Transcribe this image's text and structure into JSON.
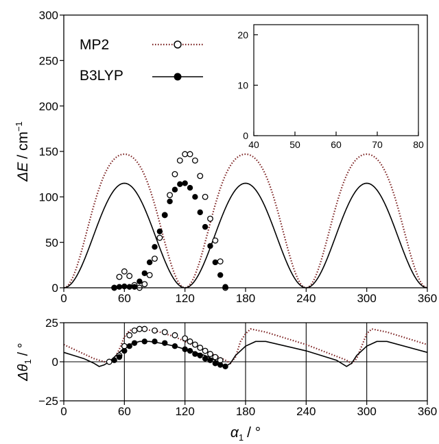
{
  "chart_data": [
    {
      "type": "line",
      "panel": "top",
      "ylabel_sym": "ΔE",
      "ylabel_unit": "/ cm",
      "ylabel_exp": "−1",
      "xlim": [
        0,
        360
      ],
      "ylim": [
        0,
        300
      ],
      "xticks": [
        0,
        60,
        120,
        180,
        240,
        300,
        360
      ],
      "yticks": [
        0,
        50,
        100,
        150,
        200,
        250,
        300
      ],
      "legend_position": "top-left",
      "series": [
        {
          "name": "MP2",
          "style": "dotted",
          "color": "#7a1f1f",
          "marker": "open-circle",
          "curve_amplitude": 147,
          "curve_inner_amplitude": 18,
          "curve_inner_phase": 90,
          "points": [
            [
              50,
              0
            ],
            [
              55,
              12
            ],
            [
              60,
              18
            ],
            [
              65,
              13
            ],
            [
              70,
              3
            ],
            [
              75,
              0
            ],
            [
              80,
              4
            ],
            [
              85,
              14
            ],
            [
              90,
              32
            ],
            [
              95,
              55
            ],
            [
              100,
              80
            ],
            [
              105,
              102
            ],
            [
              110,
              125
            ],
            [
              115,
              140
            ],
            [
              120,
              147
            ],
            [
              125,
              147
            ],
            [
              130,
              140
            ],
            [
              135,
              123
            ],
            [
              140,
              100
            ],
            [
              145,
              76
            ],
            [
              150,
              52
            ],
            [
              155,
              29
            ],
            [
              160,
              0
            ]
          ]
        },
        {
          "name": "B3LYP",
          "style": "solid",
          "color": "#000000",
          "marker": "filled-circle",
          "curve_amplitude": 115,
          "curve_inner_amplitude": 1.5,
          "curve_inner_phase": 90,
          "points": [
            [
              50,
              0
            ],
            [
              55,
              1
            ],
            [
              60,
              1.5
            ],
            [
              65,
              1
            ],
            [
              70,
              1
            ],
            [
              75,
              7
            ],
            [
              80,
              16
            ],
            [
              85,
              28
            ],
            [
              90,
              45
            ],
            [
              95,
              62
            ],
            [
              100,
              80
            ],
            [
              105,
              95
            ],
            [
              110,
              108
            ],
            [
              115,
              114
            ],
            [
              120,
              115
            ],
            [
              125,
              110
            ],
            [
              130,
              100
            ],
            [
              135,
              83
            ],
            [
              140,
              67
            ],
            [
              145,
              46
            ],
            [
              150,
              28
            ],
            [
              155,
              14
            ],
            [
              160,
              1
            ]
          ]
        }
      ]
    },
    {
      "type": "line",
      "panel": "inset",
      "xlim": [
        40,
        80
      ],
      "ylim": [
        0,
        22
      ],
      "xticks": [
        40,
        50,
        60,
        70,
        80
      ],
      "yticks": [
        0,
        10,
        20
      ],
      "series": [
        {
          "name": "MP2",
          "style": "dotted",
          "curve_amplitude": 147,
          "curve_inner_amplitude": 18
        },
        {
          "name": "B3LYP",
          "style": "solid",
          "curve_amplitude": 115,
          "curve_inner_amplitude": 1.5
        }
      ]
    },
    {
      "type": "line",
      "panel": "bottom",
      "ylabel_sym": "Δθ",
      "ylabel_sub": "1",
      "ylabel_unit": "/ °",
      "xlabel_sym": "α",
      "xlabel_sub": "1",
      "xlabel_unit": "/ °",
      "xlim": [
        0,
        360
      ],
      "ylim": [
        -25,
        25
      ],
      "xticks": [
        0,
        60,
        120,
        180,
        240,
        300,
        360
      ],
      "yticks": [
        -25,
        0,
        25
      ],
      "yticklabels": [
        "−25",
        "0",
        "25"
      ],
      "vertical_lines": [
        60,
        120,
        180,
        240,
        300
      ],
      "series": [
        {
          "name": "MP2",
          "style": "dotted",
          "marker": "open-circle",
          "curve": [
            [
              0,
              11
            ],
            [
              10,
              8
            ],
            [
              20,
              5
            ],
            [
              30,
              2
            ],
            [
              40,
              0
            ],
            [
              45,
              0
            ],
            [
              50,
              2
            ],
            [
              55,
              8
            ],
            [
              60,
              16
            ],
            [
              65,
              20
            ],
            [
              70,
              21
            ],
            [
              75,
              21
            ],
            [
              80,
              20.5
            ],
            [
              90,
              20
            ],
            [
              100,
              18
            ],
            [
              110,
              16
            ],
            [
              120,
              13
            ],
            [
              130,
              10
            ],
            [
              140,
              7
            ],
            [
              150,
              4
            ],
            [
              160,
              1
            ],
            [
              165,
              -1
            ],
            [
              170,
              3
            ],
            [
              175,
              13
            ],
            [
              180,
              18
            ],
            [
              185,
              21
            ],
            [
              200,
              19
            ],
            [
              240,
              11
            ],
            [
              260,
              6
            ],
            [
              280,
              1
            ],
            [
              285,
              -1
            ],
            [
              290,
              2
            ],
            [
              295,
              10
            ],
            [
              300,
              18
            ],
            [
              305,
              21
            ],
            [
              320,
              19
            ],
            [
              340,
              15
            ],
            [
              360,
              11
            ]
          ],
          "points": [
            [
              45,
              0
            ],
            [
              55,
              4
            ],
            [
              60,
              10
            ],
            [
              65,
              17
            ],
            [
              70,
              20
            ],
            [
              75,
              21
            ],
            [
              80,
              21
            ],
            [
              90,
              20
            ],
            [
              100,
              19
            ],
            [
              110,
              17
            ],
            [
              120,
              15
            ],
            [
              125,
              13
            ],
            [
              130,
              11
            ],
            [
              135,
              9
            ],
            [
              140,
              7
            ],
            [
              145,
              5
            ],
            [
              150,
              3
            ],
            [
              155,
              1
            ]
          ]
        },
        {
          "name": "B3LYP",
          "style": "solid",
          "marker": "filled-circle",
          "curve": [
            [
              0,
              6
            ],
            [
              10,
              4
            ],
            [
              20,
              2
            ],
            [
              30,
              -1
            ],
            [
              35,
              -3
            ],
            [
              40,
              -2
            ],
            [
              45,
              0
            ],
            [
              50,
              3
            ],
            [
              55,
              6
            ],
            [
              60,
              9
            ],
            [
              65,
              11
            ],
            [
              75,
              13
            ],
            [
              85,
              13
            ],
            [
              95,
              12
            ],
            [
              110,
              10
            ],
            [
              120,
              8
            ],
            [
              130,
              6
            ],
            [
              140,
              4
            ],
            [
              150,
              1
            ],
            [
              160,
              -3
            ],
            [
              165,
              -1
            ],
            [
              170,
              4
            ],
            [
              180,
              10
            ],
            [
              190,
              13
            ],
            [
              200,
              13
            ],
            [
              240,
              7
            ],
            [
              270,
              1
            ],
            [
              280,
              -3
            ],
            [
              285,
              -1
            ],
            [
              290,
              4
            ],
            [
              300,
              10
            ],
            [
              310,
              13
            ],
            [
              320,
              13
            ],
            [
              360,
              6
            ]
          ],
          "points": [
            [
              50,
              1
            ],
            [
              55,
              3
            ],
            [
              60,
              7
            ],
            [
              65,
              10
            ],
            [
              70,
              12
            ],
            [
              80,
              13
            ],
            [
              90,
              13
            ],
            [
              100,
              12
            ],
            [
              110,
              10
            ],
            [
              120,
              8
            ],
            [
              125,
              7
            ],
            [
              130,
              5
            ],
            [
              135,
              4
            ],
            [
              140,
              2
            ],
            [
              145,
              1
            ],
            [
              150,
              -1
            ],
            [
              155,
              -2
            ],
            [
              160,
              -3
            ]
          ]
        }
      ]
    }
  ]
}
